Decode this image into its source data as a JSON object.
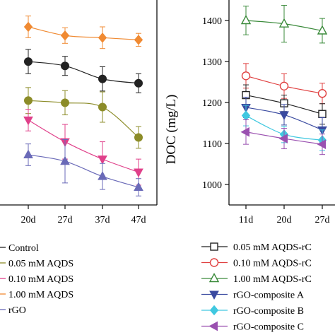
{
  "chart_data": [
    {
      "type": "line",
      "title": "",
      "xlabel": "",
      "ylabel": "",
      "categories": [
        "20d",
        "27d",
        "37d",
        "47d"
      ],
      "grid": false,
      "legend": "bottom",
      "error_bars": true,
      "series": [
        {
          "name": "1.00 mM AQDS",
          "color": "#f08a32",
          "marker": "diamond",
          "values": [
            1345,
            1325,
            1320,
            1315
          ],
          "err": [
            25,
            18,
            25,
            15
          ]
        },
        {
          "name": "Control",
          "color": "#222222",
          "marker": "circle",
          "values": [
            1265,
            1255,
            1225,
            1215
          ],
          "err": [
            28,
            22,
            28,
            22
          ]
        },
        {
          "name": "0.05 mM AQDS",
          "color": "#8c8c28",
          "marker": "circle",
          "values": [
            1175,
            1170,
            1160,
            1090
          ],
          "err": [
            30,
            28,
            35,
            25
          ]
        },
        {
          "name": "0.10 mM AQDS",
          "color": "#e0408a",
          "marker": "triangle-down",
          "values": [
            1130,
            1080,
            1040,
            1010
          ],
          "err": [
            25,
            40,
            40,
            30
          ]
        },
        {
          "name": "rGO",
          "color": "#6a6ab8",
          "marker": "triangle-up",
          "values": [
            1050,
            1035,
            1000,
            975
          ],
          "err": [
            25,
            50,
            30,
            20
          ]
        }
      ]
    },
    {
      "type": "line",
      "title": "",
      "xlabel": "",
      "ylabel": "DOC (mg/L)",
      "ylim": [
        950,
        1450
      ],
      "yticks": [
        1000,
        1100,
        1200,
        1300,
        1400
      ],
      "categories": [
        "11d",
        "20d",
        "27d"
      ],
      "grid": false,
      "legend": "bottom",
      "error_bars": true,
      "series": [
        {
          "name": "1.00 mM AQDS-rC",
          "color": "#3a8a3a",
          "marker": "triangle-up-open",
          "values": [
            1400,
            1392,
            1375
          ],
          "err": [
            35,
            45,
            30
          ]
        },
        {
          "name": "0.10 mM AQDS-rC",
          "color": "#e04040",
          "marker": "circle-open",
          "values": [
            1265,
            1240,
            1222
          ],
          "err": [
            30,
            30,
            25
          ]
        },
        {
          "name": "0.05 mM AQDS-rC",
          "color": "#222222",
          "marker": "square-open",
          "values": [
            1218,
            1198,
            1172
          ],
          "err": [
            25,
            20,
            25
          ]
        },
        {
          "name": "rGO-composite A",
          "color": "#3a4aa0",
          "marker": "triangle-down",
          "values": [
            1188,
            1170,
            1133
          ],
          "err": [
            25,
            25,
            30
          ]
        },
        {
          "name": "rGO-composite B",
          "color": "#40c8e0",
          "marker": "diamond",
          "values": [
            1168,
            1122,
            1108
          ],
          "err": [
            25,
            20,
            25
          ]
        },
        {
          "name": "rGO-composite C",
          "color": "#9a50b0",
          "marker": "triangle-left",
          "values": [
            1128,
            1112,
            1098
          ],
          "err": [
            30,
            25,
            25
          ]
        }
      ]
    }
  ],
  "left_legend": [
    "Control",
    "0.05 mM AQDS",
    "0.10 mM AQDS",
    "1.00 mM AQDS",
    "rGO"
  ],
  "left_legend_colors": [
    "#222222",
    "#8c8c28",
    "#e0408a",
    "#f08a32",
    "#6a6ab8"
  ],
  "right_legend": [
    "0.05 mM AQDS-rC",
    "0.10 mM AQDS-rC",
    "1.00 mM AQDS-rC",
    "rGO-composite A",
    "rGO-composite B",
    "rGO-composite C"
  ]
}
